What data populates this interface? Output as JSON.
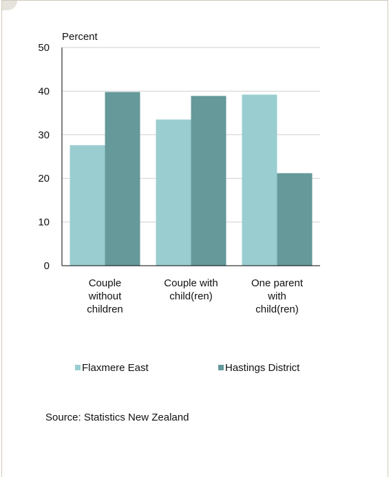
{
  "chart_data": {
    "type": "bar",
    "ylabel": "Percent",
    "ylim": [
      0,
      50
    ],
    "yticks": [
      0,
      10,
      20,
      30,
      40,
      50
    ],
    "grid": true,
    "legend_position": "bottom",
    "categories": [
      [
        "Couple",
        "without",
        "children"
      ],
      [
        "Couple with",
        "child(ren)"
      ],
      [
        "One parent",
        "with",
        "child(ren)"
      ]
    ],
    "series": [
      {
        "name": "Flaxmere East",
        "color": "#9acdd0",
        "values": [
          27.6,
          33.5,
          39.2
        ]
      },
      {
        "name": "Hastings District",
        "color": "#65999a",
        "values": [
          39.8,
          38.9,
          21.2
        ]
      }
    ]
  },
  "source": "Source: Statistics New Zealand"
}
